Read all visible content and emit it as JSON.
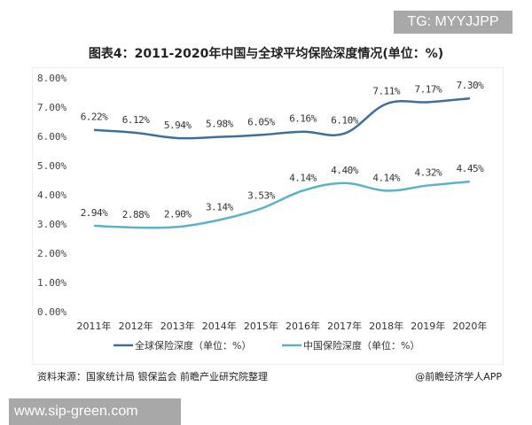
{
  "watermark_top": "TG: MYYJJPP",
  "watermark_bottom": "www.sip-green.com",
  "source": "资料来源：国家统计局 银保监会 前瞻产业研究院整理",
  "credit": "@前瞻经济学人APP",
  "chart_data": {
    "type": "line",
    "title": "图表4：2011-2020年中国与全球平均保险深度情况(单位：%)",
    "categories": [
      "2011年",
      "2012年",
      "2013年",
      "2014年",
      "2015年",
      "2016年",
      "2017年",
      "2018年",
      "2019年",
      "2020年"
    ],
    "ylim": [
      0,
      8
    ],
    "yticks": [
      "0.00%",
      "1.00%",
      "2.00%",
      "3.00%",
      "4.00%",
      "5.00%",
      "6.00%",
      "7.00%",
      "8.00%"
    ],
    "grid": false,
    "legend": "bottom",
    "series": [
      {
        "name": "全球保险深度（单位：%）",
        "color": "#3f6e98",
        "values": [
          6.22,
          6.12,
          5.94,
          5.98,
          6.05,
          6.16,
          6.1,
          7.11,
          7.17,
          7.3
        ],
        "labels": [
          "6.22%",
          "6.12%",
          "5.94%",
          "5.98%",
          "6.05%",
          "6.16%",
          "6.10%",
          "7.11%",
          "7.17%",
          "7.30%"
        ]
      },
      {
        "name": "中国保险深度（单位：%）",
        "color": "#5bb3c9",
        "values": [
          2.94,
          2.88,
          2.9,
          3.14,
          3.53,
          4.14,
          4.4,
          4.14,
          4.32,
          4.45
        ],
        "labels": [
          "2.94%",
          "2.88%",
          "2.90%",
          "3.14%",
          "3.53%",
          "4.14%",
          "4.40%",
          "4.14%",
          "4.32%",
          "4.45%"
        ]
      }
    ]
  }
}
